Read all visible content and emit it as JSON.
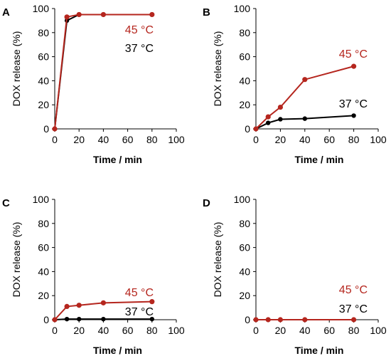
{
  "chart_data": [
    {
      "type": "line",
      "panel": "A",
      "xlabel": "Time / min",
      "ylabel": "DOX release (%)",
      "xlim": [
        0,
        100
      ],
      "ylim": [
        0,
        100
      ],
      "xticks": [
        0,
        20,
        40,
        60,
        80,
        100
      ],
      "yticks": [
        0,
        20,
        40,
        60,
        80,
        100
      ],
      "series": [
        {
          "name": "45 °C",
          "color": "#b5261e",
          "x": [
            0,
            10,
            20,
            40,
            80
          ],
          "y": [
            0,
            93,
            95,
            95,
            95
          ]
        },
        {
          "name": "37 °C",
          "color": "#000000",
          "x": [
            0,
            10,
            20,
            40,
            80
          ],
          "y": [
            0,
            90,
            95,
            95,
            95
          ]
        }
      ]
    },
    {
      "type": "line",
      "panel": "B",
      "xlabel": "Time / min",
      "ylabel": "DOX release (%)",
      "xlim": [
        0,
        100
      ],
      "ylim": [
        0,
        100
      ],
      "xticks": [
        0,
        20,
        40,
        60,
        80,
        100
      ],
      "yticks": [
        0,
        20,
        40,
        60,
        80,
        100
      ],
      "series": [
        {
          "name": "45 °C",
          "color": "#b5261e",
          "x": [
            0,
            10,
            20,
            40,
            80
          ],
          "y": [
            0,
            10,
            18,
            41,
            52
          ]
        },
        {
          "name": "37 °C",
          "color": "#000000",
          "x": [
            0,
            10,
            20,
            40,
            80
          ],
          "y": [
            0,
            5,
            8,
            8.5,
            11
          ]
        }
      ]
    },
    {
      "type": "line",
      "panel": "C",
      "xlabel": "Time / min",
      "ylabel": "DOX release (%)",
      "xlim": [
        0,
        100
      ],
      "ylim": [
        0,
        100
      ],
      "xticks": [
        0,
        20,
        40,
        60,
        80,
        100
      ],
      "yticks": [
        0,
        20,
        40,
        60,
        80,
        100
      ],
      "series": [
        {
          "name": "45 °C",
          "color": "#b5261e",
          "x": [
            0,
            10,
            20,
            40,
            80
          ],
          "y": [
            0,
            11,
            12,
            14,
            15
          ]
        },
        {
          "name": "37 °C",
          "color": "#000000",
          "x": [
            0,
            10,
            20,
            40,
            80
          ],
          "y": [
            0,
            0.5,
            0.5,
            0.5,
            0.5
          ]
        }
      ]
    },
    {
      "type": "line",
      "panel": "D",
      "xlabel": "Time / min",
      "ylabel": "DOX release (%)",
      "xlim": [
        0,
        100
      ],
      "ylim": [
        0,
        100
      ],
      "xticks": [
        0,
        20,
        40,
        60,
        80,
        100
      ],
      "yticks": [
        0,
        20,
        40,
        60,
        80,
        100
      ],
      "series": [
        {
          "name": "45 °C",
          "color": "#b5261e",
          "x": [
            0,
            10,
            20,
            40,
            80
          ],
          "y": [
            0,
            0,
            0,
            0,
            0
          ]
        },
        {
          "name": "37 °C",
          "color": "#000000",
          "x": [
            0,
            10,
            20,
            40,
            80
          ],
          "y": [
            0,
            0,
            0,
            0,
            0
          ]
        }
      ]
    }
  ]
}
